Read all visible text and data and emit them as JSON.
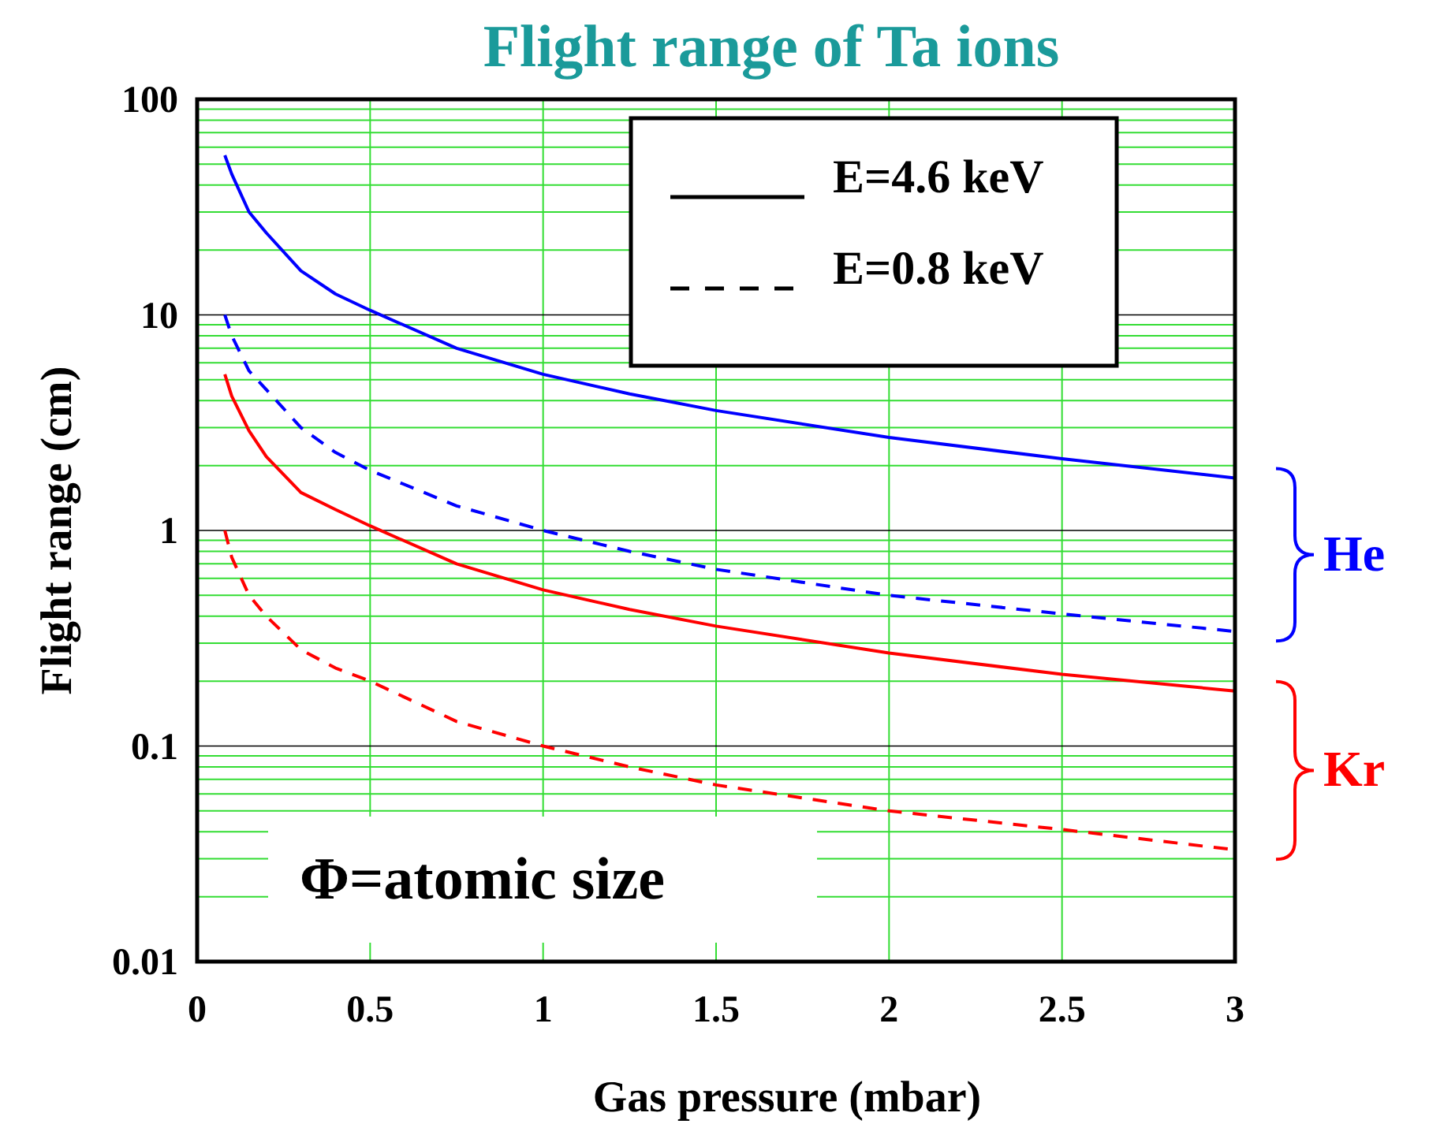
{
  "chart_data": {
    "type": "line",
    "title": "Flight range of Ta ions",
    "xlabel": "Gas pressure (mbar)",
    "ylabel": "Flight range (cm)",
    "x": [
      0.08,
      0.1,
      0.15,
      0.2,
      0.3,
      0.4,
      0.5,
      0.75,
      1,
      1.25,
      1.5,
      2,
      2.5,
      3
    ],
    "series": [
      {
        "color": "#0000ff",
        "line_style": "solid",
        "values": [
          55,
          45,
          30,
          24,
          16,
          12.5,
          10.5,
          7,
          5.3,
          4.3,
          3.6,
          2.7,
          2.15,
          1.75
        ]
      },
      {
        "color": "#0000ff",
        "line_style": "dashed",
        "values": [
          10,
          8,
          5.5,
          4.5,
          3,
          2.3,
          1.9,
          1.3,
          1.0,
          0.8,
          0.66,
          0.5,
          0.41,
          0.34
        ]
      },
      {
        "color": "#ff0000",
        "line_style": "solid",
        "values": [
          5.3,
          4.2,
          2.9,
          2.2,
          1.5,
          1.25,
          1.05,
          0.7,
          0.53,
          0.43,
          0.36,
          0.27,
          0.215,
          0.18
        ]
      },
      {
        "color": "#ff0000",
        "line_style": "dashed",
        "values": [
          1.0,
          0.75,
          0.5,
          0.4,
          0.28,
          0.23,
          0.2,
          0.13,
          0.1,
          0.08,
          0.066,
          0.05,
          0.041,
          0.033
        ]
      }
    ],
    "xlim": [
      0,
      3
    ],
    "xticks": [
      0,
      0.5,
      1,
      1.5,
      2,
      2.5,
      3
    ],
    "ylim": [
      0.01,
      100
    ],
    "yticks": [
      0.01,
      0.1,
      1,
      10,
      100
    ],
    "log": "y",
    "grid": true,
    "annotations": [
      "E=4.6 keV",
      "E=0.8 keV",
      "He",
      "Kr",
      "Φ=atomic size"
    ]
  }
}
